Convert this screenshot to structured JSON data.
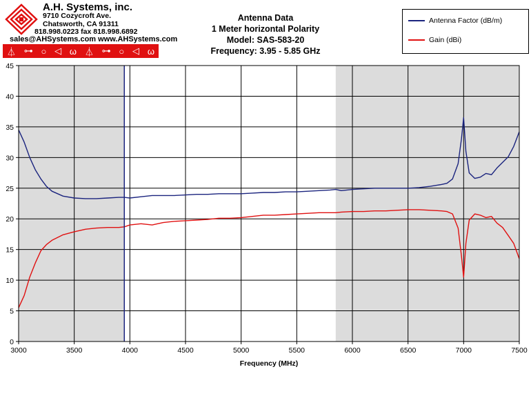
{
  "header": {
    "company": "A.H. Systems, inc.",
    "address1": "9710 Cozycroft Ave.",
    "address2": "Chatsworth, CA 91311",
    "phone": "818.998.0223 fax 818.998.6892",
    "web": "sales@AHSystems.com www.AHSystems.com",
    "icons": [
      "antenna-icon",
      "dipole-icon",
      "loop-icon",
      "horn-icon",
      "biconical-icon",
      "antenna-icon",
      "dipole-icon",
      "loop-icon",
      "horn-icon",
      "biconical-icon"
    ]
  },
  "colors": {
    "series_af": "#1a237e",
    "series_gain": "#e01010",
    "shade": "#dcdcdc",
    "logo_red": "#e01010"
  },
  "chart_data": {
    "type": "line",
    "title_lines": [
      "Antenna Data",
      "1 Meter horizontal Polarity",
      "Model: SAS-583-20",
      "Frequency: 3.95 - 5.85 GHz"
    ],
    "xlabel": "Frequency (MHz)",
    "ylabel": "",
    "xlim": [
      3000,
      7500
    ],
    "ylim": [
      0,
      45
    ],
    "xticks": [
      3000,
      3500,
      4000,
      4500,
      5000,
      5500,
      6000,
      6500,
      7000,
      7500
    ],
    "yticks": [
      0,
      5,
      10,
      15,
      20,
      25,
      30,
      35,
      40,
      45
    ],
    "grid": true,
    "shaded_ranges": [
      [
        3000,
        3950
      ],
      [
        5850,
        7500
      ]
    ],
    "vline": 3950,
    "legend_position": "top-right",
    "series": [
      {
        "name": "Antenna Factor (dB/m)",
        "x": [
          3000,
          3050,
          3100,
          3150,
          3200,
          3250,
          3300,
          3400,
          3500,
          3600,
          3700,
          3800,
          3900,
          3950,
          4000,
          4100,
          4200,
          4300,
          4400,
          4500,
          4600,
          4700,
          4800,
          4900,
          5000,
          5100,
          5200,
          5300,
          5400,
          5500,
          5600,
          5700,
          5800,
          5850,
          5900,
          6000,
          6100,
          6200,
          6300,
          6400,
          6500,
          6600,
          6700,
          6800,
          6850,
          6900,
          6950,
          6980,
          7000,
          7020,
          7050,
          7100,
          7150,
          7200,
          7250,
          7300,
          7350,
          7400,
          7450,
          7500
        ],
        "y": [
          34.5,
          32.5,
          30.0,
          28.0,
          26.5,
          25.3,
          24.5,
          23.7,
          23.4,
          23.3,
          23.3,
          23.4,
          23.5,
          23.5,
          23.4,
          23.6,
          23.8,
          23.8,
          23.8,
          23.9,
          24.0,
          24.0,
          24.1,
          24.1,
          24.1,
          24.2,
          24.3,
          24.3,
          24.4,
          24.4,
          24.5,
          24.6,
          24.7,
          24.8,
          24.6,
          24.8,
          24.9,
          25.0,
          25.0,
          25.0,
          25.0,
          25.1,
          25.3,
          25.6,
          25.8,
          26.5,
          29.0,
          33.0,
          36.5,
          31.0,
          27.5,
          26.6,
          26.8,
          27.4,
          27.2,
          28.3,
          29.2,
          30.1,
          31.8,
          34.2
        ]
      },
      {
        "name": "Gain (dBi)",
        "x": [
          3000,
          3050,
          3100,
          3150,
          3200,
          3250,
          3300,
          3400,
          3500,
          3600,
          3700,
          3800,
          3900,
          3950,
          4000,
          4100,
          4200,
          4300,
          4400,
          4500,
          4600,
          4700,
          4800,
          4900,
          5000,
          5100,
          5200,
          5300,
          5400,
          5500,
          5600,
          5700,
          5800,
          5850,
          5900,
          6000,
          6100,
          6200,
          6300,
          6400,
          6500,
          6600,
          6700,
          6800,
          6850,
          6900,
          6950,
          6980,
          7000,
          7020,
          7050,
          7100,
          7150,
          7200,
          7250,
          7300,
          7350,
          7400,
          7450,
          7500
        ],
        "y": [
          5.5,
          7.5,
          10.5,
          12.8,
          14.8,
          15.8,
          16.5,
          17.4,
          17.9,
          18.3,
          18.5,
          18.6,
          18.6,
          18.7,
          19.0,
          19.2,
          19.0,
          19.4,
          19.6,
          19.7,
          19.8,
          19.9,
          20.1,
          20.1,
          20.2,
          20.4,
          20.6,
          20.6,
          20.7,
          20.8,
          20.9,
          21.0,
          21.0,
          21.0,
          21.1,
          21.2,
          21.2,
          21.3,
          21.3,
          21.4,
          21.5,
          21.5,
          21.4,
          21.3,
          21.2,
          20.8,
          18.5,
          14.0,
          10.5,
          16.0,
          19.8,
          20.8,
          20.6,
          20.2,
          20.4,
          19.3,
          18.6,
          17.3,
          16.0,
          13.5
        ]
      }
    ]
  }
}
